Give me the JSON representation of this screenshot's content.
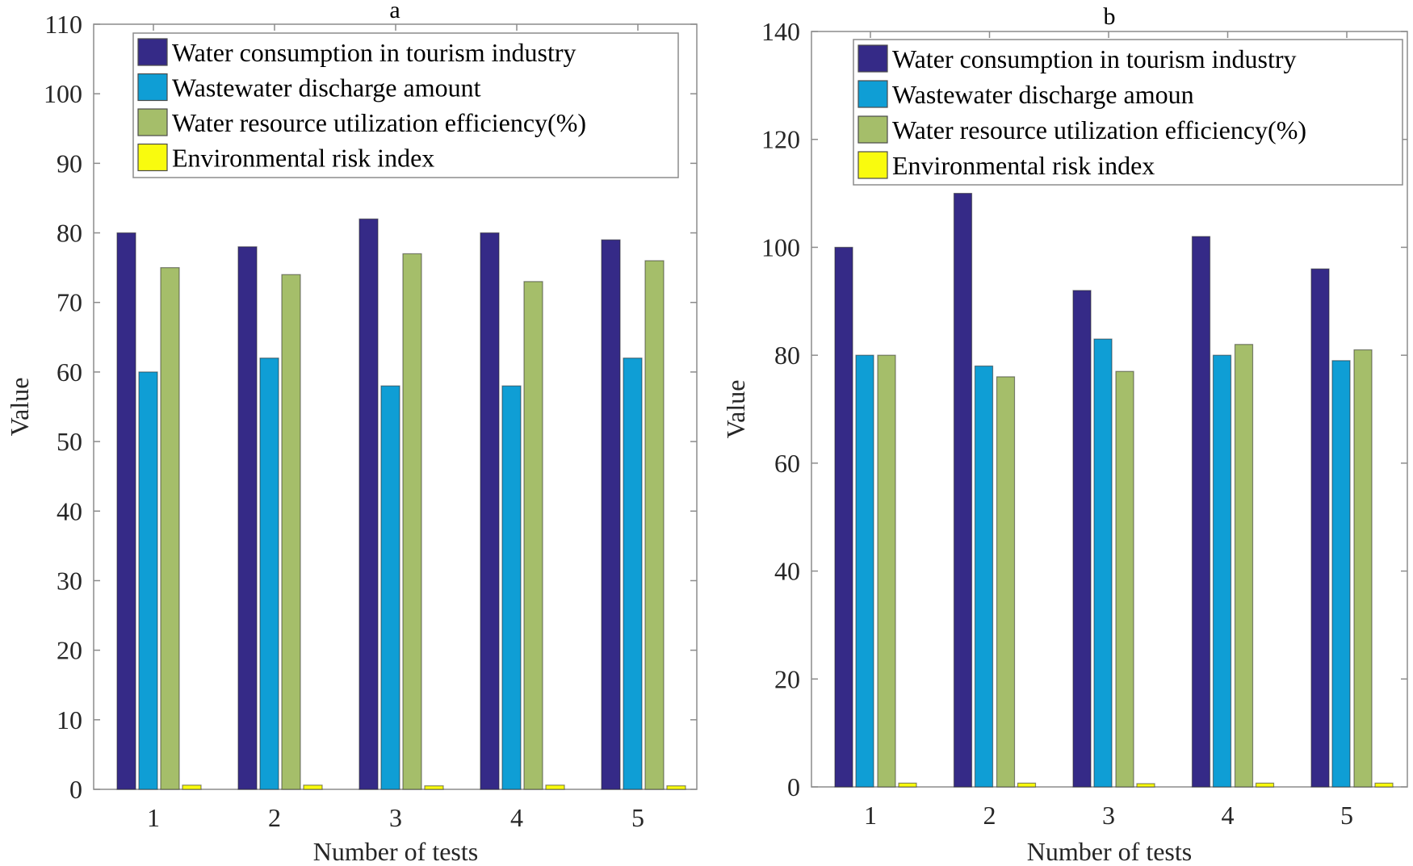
{
  "chart_data": [
    {
      "type": "bar",
      "title": "a",
      "xlabel": "Number of tests",
      "ylabel": "Value",
      "categories": [
        "1",
        "2",
        "3",
        "4",
        "5"
      ],
      "ylim": [
        0,
        110
      ],
      "yticks": [
        "0",
        "10",
        "20",
        "30",
        "40",
        "50",
        "60",
        "70",
        "80",
        "90",
        "100",
        "110"
      ],
      "legend_position": "top",
      "series": [
        {
          "name": "Water consumption in tourism industry",
          "color": "#352a87",
          "values": [
            80,
            78,
            82,
            80,
            79
          ]
        },
        {
          "name": "Wastewater discharge amount",
          "color": "#0f9ed5",
          "values": [
            60,
            62,
            58,
            58,
            62
          ]
        },
        {
          "name": "Water resource utilization efficiency(%)",
          "color": "#a5be6a",
          "values": [
            75,
            74,
            77,
            73,
            76
          ]
        },
        {
          "name": "Environmental risk index",
          "color": "#f9fb0e",
          "values": [
            0.6,
            0.6,
            0.5,
            0.6,
            0.5
          ]
        }
      ]
    },
    {
      "type": "bar",
      "title": "b",
      "xlabel": "Number of tests",
      "ylabel": "Value",
      "categories": [
        "1",
        "2",
        "3",
        "4",
        "5"
      ],
      "ylim": [
        0,
        140
      ],
      "yticks": [
        "0",
        "20",
        "40",
        "60",
        "80",
        "100",
        "120",
        "140"
      ],
      "legend_position": "top",
      "series": [
        {
          "name": "Water consumption in tourism industry",
          "color": "#352a87",
          "values": [
            100,
            110,
            92,
            102,
            96
          ]
        },
        {
          "name": "Wastewater discharge amoun",
          "color": "#0f9ed5",
          "values": [
            80,
            78,
            83,
            80,
            79
          ]
        },
        {
          "name": "Water resource utilization efficiency(%)",
          "color": "#a5be6a",
          "values": [
            80,
            76,
            77,
            82,
            81
          ]
        },
        {
          "name": "Environmental risk index",
          "color": "#f9fb0e",
          "values": [
            0.7,
            0.7,
            0.6,
            0.7,
            0.7
          ]
        }
      ]
    }
  ]
}
